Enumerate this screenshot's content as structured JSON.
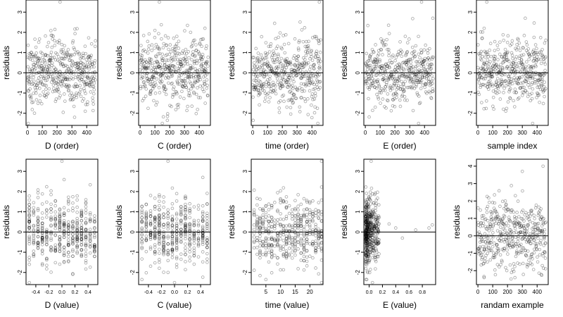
{
  "chart_data": [
    {
      "type": "scatter",
      "xlabel": "D (order)",
      "ylabel": "residuals",
      "xlim": [
        -10,
        475
      ],
      "ylim": [
        -2.6,
        3.6
      ],
      "xticks": [
        0,
        100,
        200,
        300,
        400
      ],
      "xtick_labels": [
        "0",
        "100",
        "200",
        "300",
        "400"
      ],
      "yticks": [
        -2,
        -1,
        0,
        1,
        2,
        3
      ],
      "ytick_labels": [
        "-2",
        "-1",
        "0",
        "1",
        "2",
        "3"
      ],
      "hline": 0,
      "n_points": 460,
      "x_kind": "index",
      "spread": 0.8,
      "outliers": [
        [
          220,
          3.5
        ],
        [
          5,
          -2.5
        ],
        [
          390,
          -1.9
        ]
      ],
      "grid": false
    },
    {
      "type": "scatter",
      "xlabel": "C (order)",
      "ylabel": "residuals",
      "xlim": [
        -10,
        475
      ],
      "ylim": [
        -2.6,
        3.6
      ],
      "xticks": [
        0,
        100,
        200,
        300,
        400
      ],
      "xtick_labels": [
        "0",
        "100",
        "200",
        "300",
        "400"
      ],
      "yticks": [
        -2,
        -1,
        0,
        1,
        2,
        3
      ],
      "ytick_labels": [
        "-2",
        "-1",
        "0",
        "1",
        "2",
        "3"
      ],
      "hline": 0,
      "n_points": 460,
      "x_kind": "index",
      "spread": 0.8,
      "outliers": [
        [
          130,
          3.5
        ],
        [
          150,
          -2.5
        ]
      ],
      "grid": false
    },
    {
      "type": "scatter",
      "xlabel": "time (order)",
      "ylabel": "residuals",
      "xlim": [
        -10,
        475
      ],
      "ylim": [
        -2.6,
        3.6
      ],
      "xticks": [
        0,
        100,
        200,
        300,
        400
      ],
      "xtick_labels": [
        "0",
        "100",
        "200",
        "300",
        "400"
      ],
      "yticks": [
        -2,
        -1,
        0,
        1,
        2,
        3
      ],
      "ytick_labels": [
        "-2",
        "-1",
        "0",
        "1",
        "2",
        "3"
      ],
      "hline": 0,
      "n_points": 460,
      "x_kind": "index",
      "spread": 0.8,
      "outliers": [
        [
          450,
          3.5
        ],
        [
          440,
          -2.5
        ]
      ],
      "grid": false
    },
    {
      "type": "scatter",
      "xlabel": "E (order)",
      "ylabel": "residuals",
      "xlim": [
        -10,
        475
      ],
      "ylim": [
        -2.6,
        3.6
      ],
      "xticks": [
        0,
        100,
        200,
        300,
        400
      ],
      "xtick_labels": [
        "0",
        "100",
        "200",
        "300",
        "400"
      ],
      "yticks": [
        -2,
        -1,
        0,
        1,
        2,
        3
      ],
      "ytick_labels": [
        "-2",
        "-1",
        "0",
        "1",
        "2",
        "3"
      ],
      "hline": 0,
      "n_points": 460,
      "x_kind": "index",
      "spread": 0.8,
      "outliers": [
        [
          380,
          3.5
        ],
        [
          360,
          -2.5
        ]
      ],
      "grid": false
    },
    {
      "type": "scatter",
      "xlabel": "sample index",
      "ylabel": "residuals",
      "xlim": [
        -10,
        475
      ],
      "ylim": [
        -2.6,
        3.6
      ],
      "xticks": [
        0,
        100,
        200,
        300,
        400
      ],
      "xtick_labels": [
        "0",
        "100",
        "200",
        "300",
        "400"
      ],
      "yticks": [
        -2,
        -1,
        0,
        1,
        2,
        3
      ],
      "ytick_labels": [
        "-2",
        "-1",
        "0",
        "1",
        "2",
        "3"
      ],
      "hline": 0,
      "n_points": 460,
      "x_kind": "index",
      "spread": 0.8,
      "outliers": [
        [
          60,
          3.5
        ],
        [
          370,
          -2.5
        ]
      ],
      "grid": false
    },
    {
      "type": "scatter",
      "xlabel": "D (value)",
      "ylabel": "residuals",
      "xlim": [
        -0.55,
        0.55
      ],
      "ylim": [
        -2.6,
        3.6
      ],
      "xticks": [
        -0.4,
        -0.2,
        0.0,
        0.2,
        0.4
      ],
      "xtick_labels": [
        "-0.4",
        "-0.2",
        "0.0",
        "0.2",
        "0.4"
      ],
      "yticks": [
        -2,
        -1,
        0,
        1,
        2,
        3
      ],
      "ytick_labels": [
        "-2",
        "-1",
        "0",
        "1",
        "2",
        "3"
      ],
      "hline": 0,
      "n_points": 460,
      "x_kind": "value",
      "x_range": [
        -0.5,
        0.5
      ],
      "x_columns": 16,
      "spread": 0.8,
      "outliers": [
        [
          0.0,
          3.5
        ],
        [
          -0.5,
          -2.5
        ]
      ],
      "grid": false
    },
    {
      "type": "scatter",
      "xlabel": "C (value)",
      "ylabel": "residuals",
      "xlim": [
        -0.55,
        0.55
      ],
      "ylim": [
        -2.6,
        3.6
      ],
      "xticks": [
        -0.4,
        -0.2,
        0.0,
        0.2,
        0.4
      ],
      "xtick_labels": [
        "-0.4",
        "-0.2",
        "0.0",
        "0.2",
        "0.4"
      ],
      "yticks": [
        -2,
        -1,
        0,
        1,
        2,
        3
      ],
      "ytick_labels": [
        "-2",
        "-1",
        "0",
        "1",
        "2",
        "3"
      ],
      "hline": 0,
      "n_points": 460,
      "x_kind": "value",
      "x_range": [
        -0.5,
        0.5
      ],
      "x_columns": 16,
      "spread": 0.8,
      "outliers": [
        [
          -0.1,
          3.5
        ],
        [
          0.0,
          -2.5
        ]
      ],
      "grid": false
    },
    {
      "type": "scatter",
      "xlabel": "time (value)",
      "ylabel": "residuals",
      "xlim": [
        0,
        24.5
      ],
      "ylim": [
        -2.6,
        3.6
      ],
      "xticks": [
        5,
        10,
        15,
        20
      ],
      "xtick_labels": [
        "5",
        "10",
        "15",
        "20"
      ],
      "yticks": [
        -2,
        -1,
        0,
        1,
        2,
        3
      ],
      "ytick_labels": [
        "-2",
        "-1",
        "0",
        "1",
        "2",
        "3"
      ],
      "hline": 0,
      "n_points": 460,
      "x_kind": "value",
      "x_range": [
        1,
        24
      ],
      "x_columns": 24,
      "spread": 0.8,
      "outliers": [
        [
          24,
          3.5
        ],
        [
          24,
          -2.5
        ]
      ],
      "grid": false
    },
    {
      "type": "scatter",
      "xlabel": "E (value)",
      "ylabel": "residuals",
      "xlim": [
        -0.08,
        1.0
      ],
      "ylim": [
        -2.6,
        3.6
      ],
      "xticks": [
        0.0,
        0.2,
        0.4,
        0.6,
        0.8
      ],
      "xtick_labels": [
        "0.0",
        "0.2",
        "0.4",
        "0.6",
        "0.8"
      ],
      "yticks": [
        -2,
        -1,
        0,
        1,
        2,
        3
      ],
      "ytick_labels": [
        "-2",
        "-1",
        "0",
        "1",
        "2",
        "3"
      ],
      "hline": 0,
      "n_points": 460,
      "x_kind": "clustered",
      "x_range": [
        -0.05,
        0.15
      ],
      "sparse": [
        [
          0.3,
          0.4
        ],
        [
          0.4,
          0.2
        ],
        [
          0.5,
          -0.3
        ],
        [
          0.7,
          0.1
        ],
        [
          0.9,
          0.2
        ],
        [
          0.95,
          0.35
        ]
      ],
      "spread": 0.8,
      "outliers": [
        [
          0.03,
          3.5
        ],
        [
          0.05,
          -2.5
        ]
      ],
      "grid": false
    },
    {
      "type": "scatter",
      "xlabel": "randam example",
      "ylabel": "residuals",
      "xlim": [
        -10,
        475
      ],
      "ylim": [
        -2.8,
        4.4
      ],
      "xticks": [
        0,
        100,
        200,
        300,
        400
      ],
      "xtick_labels": [
        "0",
        "100",
        "200",
        "300",
        "400"
      ],
      "yticks": [
        -2,
        -1,
        0,
        1,
        2,
        3,
        4
      ],
      "ytick_labels": [
        "-2",
        "-1",
        "0",
        "1",
        "2",
        "3",
        "4"
      ],
      "hline": 0,
      "n_points": 460,
      "x_kind": "index",
      "spread": 1.0,
      "outliers": [
        [
          440,
          4.0
        ],
        [
          300,
          3.7
        ],
        [
          250,
          -2.4
        ]
      ],
      "grid": false
    }
  ]
}
